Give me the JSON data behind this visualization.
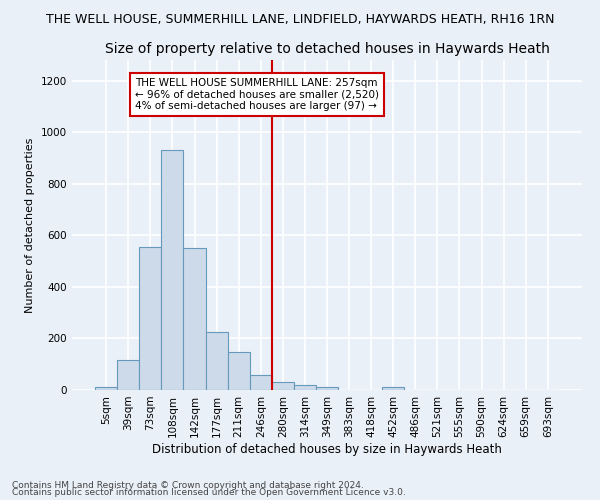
{
  "title": "THE WELL HOUSE, SUMMERHILL LANE, LINDFIELD, HAYWARDS HEATH, RH16 1RN",
  "subtitle": "Size of property relative to detached houses in Haywards Heath",
  "xlabel": "Distribution of detached houses by size in Haywards Heath",
  "ylabel": "Number of detached properties",
  "bar_labels": [
    "5sqm",
    "39sqm",
    "73sqm",
    "108sqm",
    "142sqm",
    "177sqm",
    "211sqm",
    "246sqm",
    "280sqm",
    "314sqm",
    "349sqm",
    "383sqm",
    "418sqm",
    "452sqm",
    "486sqm",
    "521sqm",
    "555sqm",
    "590sqm",
    "624sqm",
    "659sqm",
    "693sqm"
  ],
  "bar_values": [
    10,
    115,
    555,
    930,
    550,
    225,
    148,
    57,
    32,
    20,
    10,
    0,
    0,
    10,
    0,
    0,
    0,
    0,
    0,
    0,
    0
  ],
  "bar_color": "#cddaea",
  "bar_edge_color": "#6699bb",
  "vline_x": 7.5,
  "vline_color": "#cc0000",
  "annotation_text": "THE WELL HOUSE SUMMERHILL LANE: 257sqm\n← 96% of detached houses are smaller (2,520)\n4% of semi-detached houses are larger (97) →",
  "annotation_box_color": "#ffffff",
  "annotation_box_edge": "#cc0000",
  "ylim": [
    0,
    1280
  ],
  "yticks": [
    0,
    200,
    400,
    600,
    800,
    1000,
    1200
  ],
  "footnote1": "Contains HM Land Registry data © Crown copyright and database right 2024.",
  "footnote2": "Contains public sector information licensed under the Open Government Licence v3.0.",
  "background_color": "#eaf0f8",
  "grid_color": "#ffffff",
  "title_fontsize": 9,
  "subtitle_fontsize": 10,
  "tick_fontsize": 7.5,
  "ylabel_fontsize": 8,
  "xlabel_fontsize": 8.5,
  "footnote_fontsize": 6.5
}
